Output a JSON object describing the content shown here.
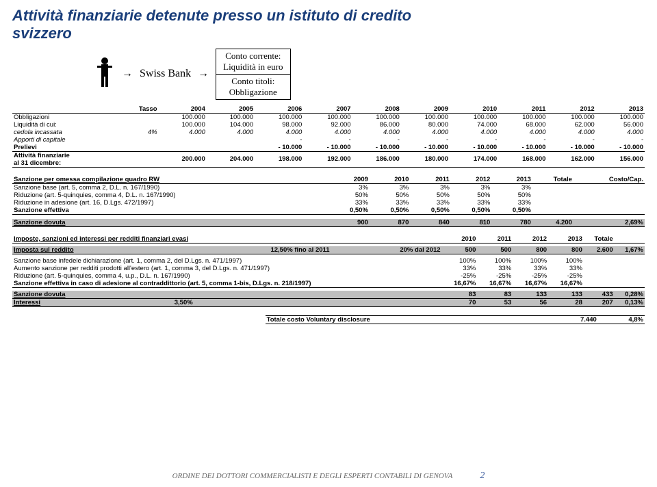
{
  "title_l1": "Attività finanziarie detenute presso un istituto di credito",
  "title_l2": "svizzero",
  "diagram": {
    "bank": "Swiss Bank",
    "box1_l1": "Conto corrente:",
    "box1_l2": "Liquidità in euro",
    "box2_l1": "Conto titoli:",
    "box2_l2": "Obbligazione"
  },
  "t1": {
    "h": [
      "",
      "Tasso",
      "2004",
      "2005",
      "2006",
      "2007",
      "2008",
      "2009",
      "2010",
      "2011",
      "2012",
      "2013"
    ],
    "rows": [
      [
        "Obbligazioni",
        "",
        "100.000",
        "100.000",
        "100.000",
        "100.000",
        "100.000",
        "100.000",
        "100.000",
        "100.000",
        "100.000",
        "100.000"
      ],
      [
        "Liquidità di cui:",
        "",
        "100.000",
        "104.000",
        "98.000",
        "92.000",
        "86.000",
        "80.000",
        "74.000",
        "68.000",
        "62.000",
        "56.000"
      ],
      [
        "cedola incassata",
        "4%",
        "4.000",
        "4.000",
        "4.000",
        "4.000",
        "4.000",
        "4.000",
        "4.000",
        "4.000",
        "4.000",
        "4.000"
      ],
      [
        "Apporti di capitale",
        "",
        "",
        "",
        "-",
        "-",
        "-",
        "-",
        "-",
        "-",
        "-",
        "-"
      ],
      [
        "Prelievi",
        "",
        "",
        "",
        "-   10.000",
        "-   10.000",
        "-   10.000",
        "-   10.000",
        "-   10.000",
        "-   10.000",
        "-   10.000",
        "-   10.000"
      ]
    ],
    "sum_label_l1": "Attività finanziarie",
    "sum_label_l2": "al 31 dicembre:",
    "sum": [
      "200.000",
      "204.000",
      "198.000",
      "192.000",
      "186.000",
      "180.000",
      "174.000",
      "168.000",
      "162.000",
      "156.000"
    ]
  },
  "t2": {
    "h": [
      "Sanzione per omessa compilazione quadro RW",
      "2009",
      "2010",
      "2011",
      "2012",
      "2013",
      "Totale",
      "Costo/Cap."
    ],
    "rows": [
      [
        "Sanzione base (art. 5, comma 2, D.L. n. 167/1990)",
        "3%",
        "3%",
        "3%",
        "3%",
        "3%",
        "",
        ""
      ],
      [
        "Riduzione (art. 5-quinquies, comma 4, D.L. n. 167/1990)",
        "50%",
        "50%",
        "50%",
        "50%",
        "50%",
        "",
        ""
      ],
      [
        "Riduzione in adesione (art. 16, D.Lgs. 472/1997)",
        "33%",
        "33%",
        "33%",
        "33%",
        "33%",
        "",
        ""
      ],
      [
        "Sanzione effettiva",
        "0,50%",
        "0,50%",
        "0,50%",
        "0,50%",
        "0,50%",
        "",
        ""
      ]
    ],
    "sum": [
      "Sanzione dovuta",
      "900",
      "870",
      "840",
      "810",
      "780",
      "4.200",
      "2,69%"
    ]
  },
  "t3": {
    "h": [
      "Imposte, sanzioni ed interessi per redditi finanziari evasi",
      "2010",
      "2011",
      "2012",
      "2013",
      "Totale",
      ""
    ],
    "row1": [
      "Imposta sul reddito",
      "12,50% fino al 2011",
      "20% dal 2012",
      "500",
      "500",
      "800",
      "800",
      "2.600",
      "1,67%"
    ],
    "rows": [
      [
        "Sanzione base infedele dichiarazione (art. 1, comma 2, del D.Lgs. n. 471/1997)",
        "100%",
        "100%",
        "100%",
        "100%",
        "",
        ""
      ],
      [
        "Aumento sanzione per redditi prodotti all'estero (art. 1, comma 3, del D.Lgs. n. 471/1997)",
        "33%",
        "33%",
        "33%",
        "33%",
        "",
        ""
      ],
      [
        "Riduzione (art. 5-quinquies, comma 4, u.p., D.L. n. 167/1990)",
        "-25%",
        "-25%",
        "-25%",
        "-25%",
        "",
        ""
      ],
      [
        "Sanzione effettiva in caso di adesione al contraddittorio (art. 5, comma 1-bis, D.Lgs. n. 218/1997)",
        "16,67%",
        "16,67%",
        "16,67%",
        "16,67%",
        "",
        ""
      ]
    ],
    "sum1": [
      "Sanzione dovuta",
      "83",
      "83",
      "133",
      "133",
      "433",
      "0,28%"
    ],
    "sum2": [
      "Interessi",
      "3,50%",
      "70",
      "53",
      "56",
      "28",
      "207",
      "0,13%"
    ]
  },
  "total_label": "Totale costo Voluntary disclosure",
  "total_val": "7.440",
  "total_pct": "4,8%",
  "footer": "ORDINE DEI DOTTORI COMMERCIALISTI E DEGLI ESPERTI CONTABILI DI GENOVA",
  "page": "2"
}
